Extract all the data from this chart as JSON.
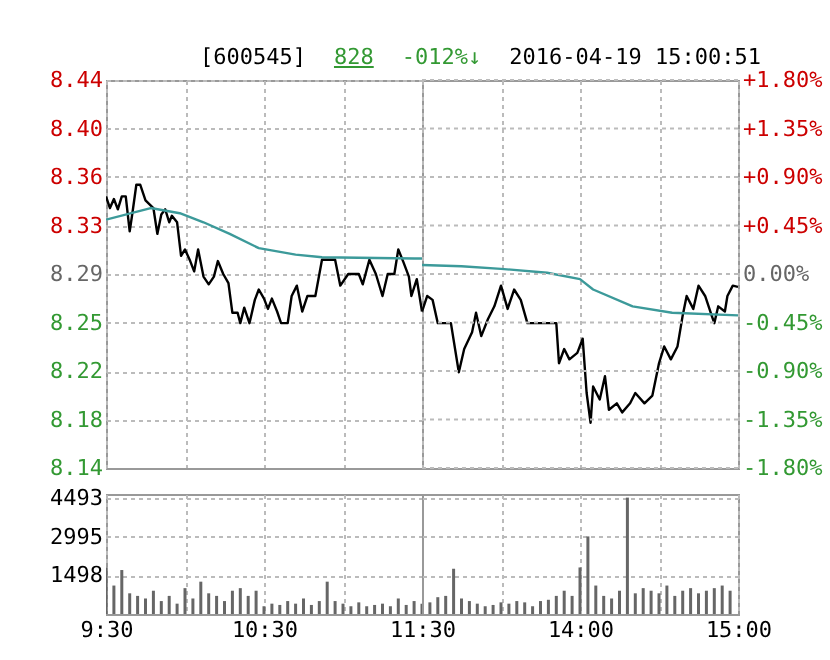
{
  "chart_data": [
    {
      "type": "line",
      "title": "[600545]",
      "annotations": [
        "828",
        "-012%↓",
        "2016-04-19 15:00:51"
      ],
      "series": [
        {
          "color": "#000000",
          "x": [
            9.5,
            9.525,
            9.55,
            9.575,
            9.6,
            9.625,
            9.65,
            9.667,
            9.692,
            9.717,
            9.75,
            9.8,
            9.825,
            9.85,
            9.875,
            9.9,
            9.917,
            9.95,
            9.975,
            10,
            10.033,
            10.058,
            10.083,
            10.117,
            10.15,
            10.183,
            10.208,
            10.242,
            10.275,
            10.3,
            10.333,
            10.35,
            10.375,
            10.408,
            10.442,
            10.467,
            10.5,
            10.525,
            10.55,
            10.583,
            10.608,
            10.65,
            10.675,
            10.708,
            10.742,
            10.775,
            10.825,
            10.867,
            10.95,
            10.983,
            11.033,
            11.1,
            11.125,
            11.167,
            11.208,
            11.25,
            11.283,
            11.325,
            11.35,
            11.383,
            11.417,
            11.433,
            11.467,
            11.5
          ],
          "values": [
            8.35,
            8.341,
            8.348,
            8.34,
            8.35,
            8.35,
            8.323,
            8.337,
            8.359,
            8.359,
            8.347,
            8.341,
            8.321,
            8.336,
            8.34,
            8.33,
            8.335,
            8.33,
            8.304,
            8.309,
            8.3,
            8.292,
            8.309,
            8.288,
            8.282,
            8.288,
            8.3,
            8.29,
            8.283,
            8.26,
            8.26,
            8.252,
            8.264,
            8.252,
            8.27,
            8.278,
            8.271,
            8.263,
            8.271,
            8.261,
            8.252,
            8.252,
            8.273,
            8.281,
            8.261,
            8.273,
            8.273,
            8.301,
            8.301,
            8.281,
            8.29,
            8.29,
            8.282,
            8.301,
            8.29,
            8.273,
            8.29,
            8.29,
            8.309,
            8.299,
            8.288,
            8.273,
            8.286,
            8.261
          ]
        },
        {
          "color": "#3c9a9a",
          "x": [
            9.5,
            9.783,
            9.967,
            10.117,
            10.283,
            10.467,
            10.7,
            10.867,
            11.45,
            11.5
          ],
          "values": [
            8.332,
            8.341,
            8.337,
            8.33,
            8.321,
            8.31,
            8.305,
            8.303,
            8.302,
            8.302
          ]
        }
      ],
      "xlim": [
        9.5,
        11.5
      ],
      "xticks": [
        9.5,
        10,
        10.5,
        11,
        11.5
      ],
      "ylim": [
        8.14,
        8.44
      ],
      "yticks": [
        {
          "value": 8.14,
          "label": "8.14"
        },
        {
          "value": 8.1775,
          "label": "8.18"
        },
        {
          "value": 8.215,
          "label": "8.22"
        },
        {
          "value": 8.2525,
          "label": "8.25"
        },
        {
          "value": 8.29,
          "label": "8.29"
        },
        {
          "value": 8.3275,
          "label": "8.33"
        },
        {
          "value": 8.365,
          "label": "8.36"
        },
        {
          "value": 8.4025,
          "label": "8.40"
        },
        {
          "value": 8.44,
          "label": "8.44"
        }
      ],
      "grid": true,
      "tick_labels": "y"
    },
    {
      "type": "line",
      "series": [
        {
          "color": "#000000",
          "x": [
            13,
            13.033,
            13.067,
            13.1,
            13.183,
            13.233,
            13.267,
            13.317,
            13.342,
            13.375,
            13.417,
            13.458,
            13.5,
            13.542,
            13.583,
            13.625,
            13.667,
            13.733,
            13.85,
            13.867,
            13.9,
            13.933,
            13.983,
            14.017,
            14.042,
            14.067,
            14.083,
            14.125,
            14.158,
            14.183,
            14.233,
            14.267,
            14.317,
            14.35,
            14.408,
            14.458,
            14.5,
            14.533,
            14.575,
            14.617,
            14.65,
            14.675,
            14.717,
            14.75,
            14.792,
            14.833,
            14.85,
            14.875,
            14.917,
            14.933,
            14.967,
            15
          ],
          "values": [
            8.261,
            8.273,
            8.27,
            8.252,
            8.252,
            8.214,
            8.232,
            8.245,
            8.26,
            8.242,
            8.255,
            8.265,
            8.281,
            8.263,
            8.278,
            8.27,
            8.252,
            8.252,
            8.252,
            8.221,
            8.232,
            8.224,
            8.229,
            8.24,
            8.198,
            8.175,
            8.203,
            8.193,
            8.211,
            8.185,
            8.19,
            8.183,
            8.19,
            8.198,
            8.19,
            8.196,
            8.221,
            8.234,
            8.224,
            8.234,
            8.258,
            8.273,
            8.263,
            8.281,
            8.273,
            8.258,
            8.252,
            8.265,
            8.261,
            8.273,
            8.281,
            8.28
          ]
        },
        {
          "color": "#3c9a9a",
          "x": [
            13,
            13.25,
            13.5,
            13.792,
            14,
            14.083,
            14.333,
            14.583,
            15
          ],
          "values": [
            8.297,
            8.296,
            8.294,
            8.291,
            8.286,
            8.278,
            8.265,
            8.26,
            8.258
          ]
        }
      ],
      "xlim": [
        13,
        15
      ],
      "xticks": [
        13,
        13.5,
        14,
        14.5,
        15
      ],
      "ylim": [
        8.14,
        8.44
      ],
      "y2lim": [
        -1.8,
        1.8
      ],
      "y2ticks": [
        {
          "value": -1.8,
          "label": "-1.80%"
        },
        {
          "value": -1.35,
          "label": "-1.35%"
        },
        {
          "value": -0.9,
          "label": "-0.90%"
        },
        {
          "value": -0.45,
          "label": "-0.45%"
        },
        {
          "value": 0,
          "label": "0.00%"
        },
        {
          "value": 0.45,
          "label": "+0.45%"
        },
        {
          "value": 0.9,
          "label": "+0.90%"
        },
        {
          "value": 1.35,
          "label": "+1.35%"
        },
        {
          "value": 1.8,
          "label": "+1.80%"
        }
      ],
      "grid": true,
      "tick_labels": false
    },
    {
      "type": "bar",
      "color": "#666666",
      "x": [
        9.5,
        9.55,
        9.6,
        9.65,
        9.7,
        9.75,
        9.8,
        9.85,
        9.9,
        9.95,
        10,
        10.05,
        10.1,
        10.15,
        10.2,
        10.25,
        10.3,
        10.35,
        10.4,
        10.45,
        10.5,
        10.55,
        10.6,
        10.65,
        10.7,
        10.75,
        10.8,
        10.85,
        10.9,
        10.95,
        11,
        11.05,
        11.1,
        11.15,
        11.2,
        11.25,
        11.3,
        11.35,
        11.4,
        11.45,
        11.5
      ],
      "values": [
        1800,
        1100,
        1700,
        800,
        700,
        600,
        900,
        500,
        700,
        400,
        1000,
        600,
        1250,
        800,
        700,
        500,
        900,
        1000,
        700,
        900,
        300,
        400,
        350,
        500,
        400,
        600,
        350,
        500,
        1250,
        500,
        400,
        300,
        450,
        300,
        350,
        400,
        300,
        600,
        350,
        500,
        400
      ],
      "xlim": [
        9.5,
        11.5
      ],
      "xticks": [
        {
          "value": 9.5,
          "label": "9:30"
        },
        {
          "value": 10,
          "label": null
        },
        {
          "value": 10.5,
          "label": "10:30"
        },
        {
          "value": 11,
          "label": null
        },
        {
          "value": 11.5,
          "label": "11:30"
        }
      ],
      "ylim": [
        0,
        4640
      ],
      "yticks": [
        1498,
        2995,
        4493
      ],
      "grid": true
    },
    {
      "type": "bar",
      "color": "#666666",
      "x": [
        13.05,
        13.1,
        13.15,
        13.2,
        13.25,
        13.3,
        13.35,
        13.4,
        13.45,
        13.5,
        13.55,
        13.6,
        13.65,
        13.7,
        13.75,
        13.8,
        13.85,
        13.9,
        13.95,
        14,
        14.05,
        14.1,
        14.15,
        14.2,
        14.25,
        14.3,
        14.35,
        14.4,
        14.45,
        14.5,
        14.55,
        14.6,
        14.65,
        14.7,
        14.75,
        14.8,
        14.85,
        14.9,
        14.95
      ],
      "values": [
        450,
        650,
        700,
        1750,
        600,
        500,
        400,
        300,
        350,
        450,
        400,
        500,
        450,
        300,
        500,
        550,
        700,
        900,
        700,
        1800,
        3000,
        1100,
        700,
        600,
        900,
        4500,
        800,
        1000,
        900,
        800,
        1100,
        700,
        900,
        1000,
        800,
        900,
        1000,
        1100,
        900
      ],
      "xlim": [
        13,
        15
      ],
      "xticks": [
        {
          "value": 13.5,
          "label": null
        },
        {
          "value": 14,
          "label": "14:00"
        },
        {
          "value": 14.5,
          "label": null
        },
        {
          "value": 15,
          "label": "15:00"
        }
      ],
      "ylim": [
        0,
        4640
      ],
      "yticks": [
        1498,
        2995,
        4493
      ],
      "grid": true,
      "tick_labels": "x"
    }
  ]
}
